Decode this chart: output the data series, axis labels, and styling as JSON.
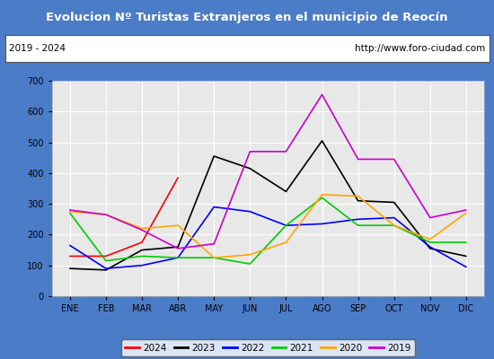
{
  "title": "Evolucion Nº Turistas Extranjeros en el municipio de Reocín",
  "subtitle_left": "2019 - 2024",
  "subtitle_right": "http://www.foro-ciudad.com",
  "title_bg_color": "#4a7cc7",
  "title_text_color": "#ffffff",
  "months": [
    "ENE",
    "FEB",
    "MAR",
    "ABR",
    "MAY",
    "JUN",
    "JUL",
    "AGO",
    "SEP",
    "OCT",
    "NOV",
    "DIC"
  ],
  "ylim": [
    0,
    700
  ],
  "yticks": [
    0,
    100,
    200,
    300,
    400,
    500,
    600,
    700
  ],
  "series": {
    "2024": {
      "color": "#ff0000",
      "data": [
        130,
        130,
        175,
        385,
        null,
        null,
        null,
        null,
        null,
        null,
        null,
        null
      ]
    },
    "2023": {
      "color": "#000000",
      "data": [
        90,
        85,
        150,
        160,
        455,
        415,
        340,
        505,
        310,
        305,
        155,
        130
      ]
    },
    "2022": {
      "color": "#0000ff",
      "data": [
        165,
        90,
        100,
        125,
        290,
        275,
        230,
        235,
        250,
        255,
        160,
        95
      ]
    },
    "2021": {
      "color": "#00cc00",
      "data": [
        270,
        115,
        130,
        125,
        125,
        105,
        230,
        320,
        230,
        230,
        175,
        175
      ]
    },
    "2020": {
      "color": "#ffa500",
      "data": [
        275,
        265,
        220,
        230,
        125,
        135,
        175,
        330,
        325,
        230,
        185,
        270
      ]
    },
    "2019": {
      "color": "#cc00cc",
      "data": [
        280,
        265,
        215,
        155,
        170,
        470,
        470,
        655,
        445,
        445,
        255,
        280
      ]
    }
  },
  "legend_order": [
    "2024",
    "2023",
    "2022",
    "2021",
    "2020",
    "2019"
  ],
  "plot_bg_color": "#e8e8e8",
  "grid_color": "#ffffff",
  "outer_bg_color": "#4a7cc7",
  "inner_bg_color": "#ffffff"
}
